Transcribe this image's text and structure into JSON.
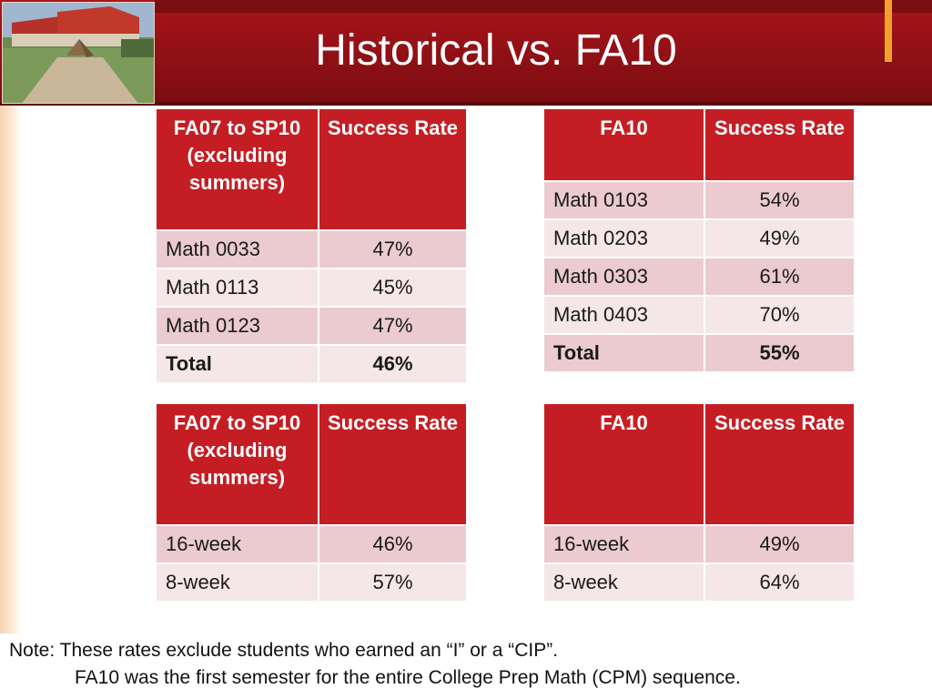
{
  "title": "Historical vs. FA10",
  "tables": {
    "top_left": {
      "headers": [
        "FA07 to SP10 (excluding summers)",
        "Success Rate"
      ],
      "rows": [
        {
          "course": "Math 0033",
          "rate": "47%"
        },
        {
          "course": "Math 0113",
          "rate": "45%"
        },
        {
          "course": "Math 0123",
          "rate": "47%"
        }
      ],
      "total": {
        "label": "Total",
        "rate": "46%"
      }
    },
    "top_right": {
      "headers": [
        "FA10",
        "Success Rate"
      ],
      "rows": [
        {
          "course": "Math 0103",
          "rate": "54%"
        },
        {
          "course": "Math 0203",
          "rate": "49%"
        },
        {
          "course": "Math 0303",
          "rate": "61%"
        },
        {
          "course": "Math 0403",
          "rate": "70%"
        }
      ],
      "total": {
        "label": "Total",
        "rate": "55%"
      }
    },
    "bottom_left": {
      "headers": [
        "FA07 to SP10 (excluding summers)",
        "Success Rate"
      ],
      "rows": [
        {
          "course": "16-week",
          "rate": "46%"
        },
        {
          "course": "8-week",
          "rate": "57%"
        }
      ]
    },
    "bottom_right": {
      "headers": [
        "FA10",
        "Success Rate"
      ],
      "rows": [
        {
          "course": "16-week",
          "rate": "49%"
        },
        {
          "course": "8-week",
          "rate": "64%"
        }
      ]
    }
  },
  "notes": {
    "line1": "Note: These rates exclude students who earned an “I” or a “CIP”.",
    "line2": "FA10 was the first semester for the entire College Prep Math (CPM) sequence."
  },
  "colors": {
    "header_band": "#8f1015",
    "table_header": "#c41e24",
    "row_odd": "#ebcbcf",
    "row_even": "#f5e6e8",
    "accent": "#f0a12a"
  }
}
